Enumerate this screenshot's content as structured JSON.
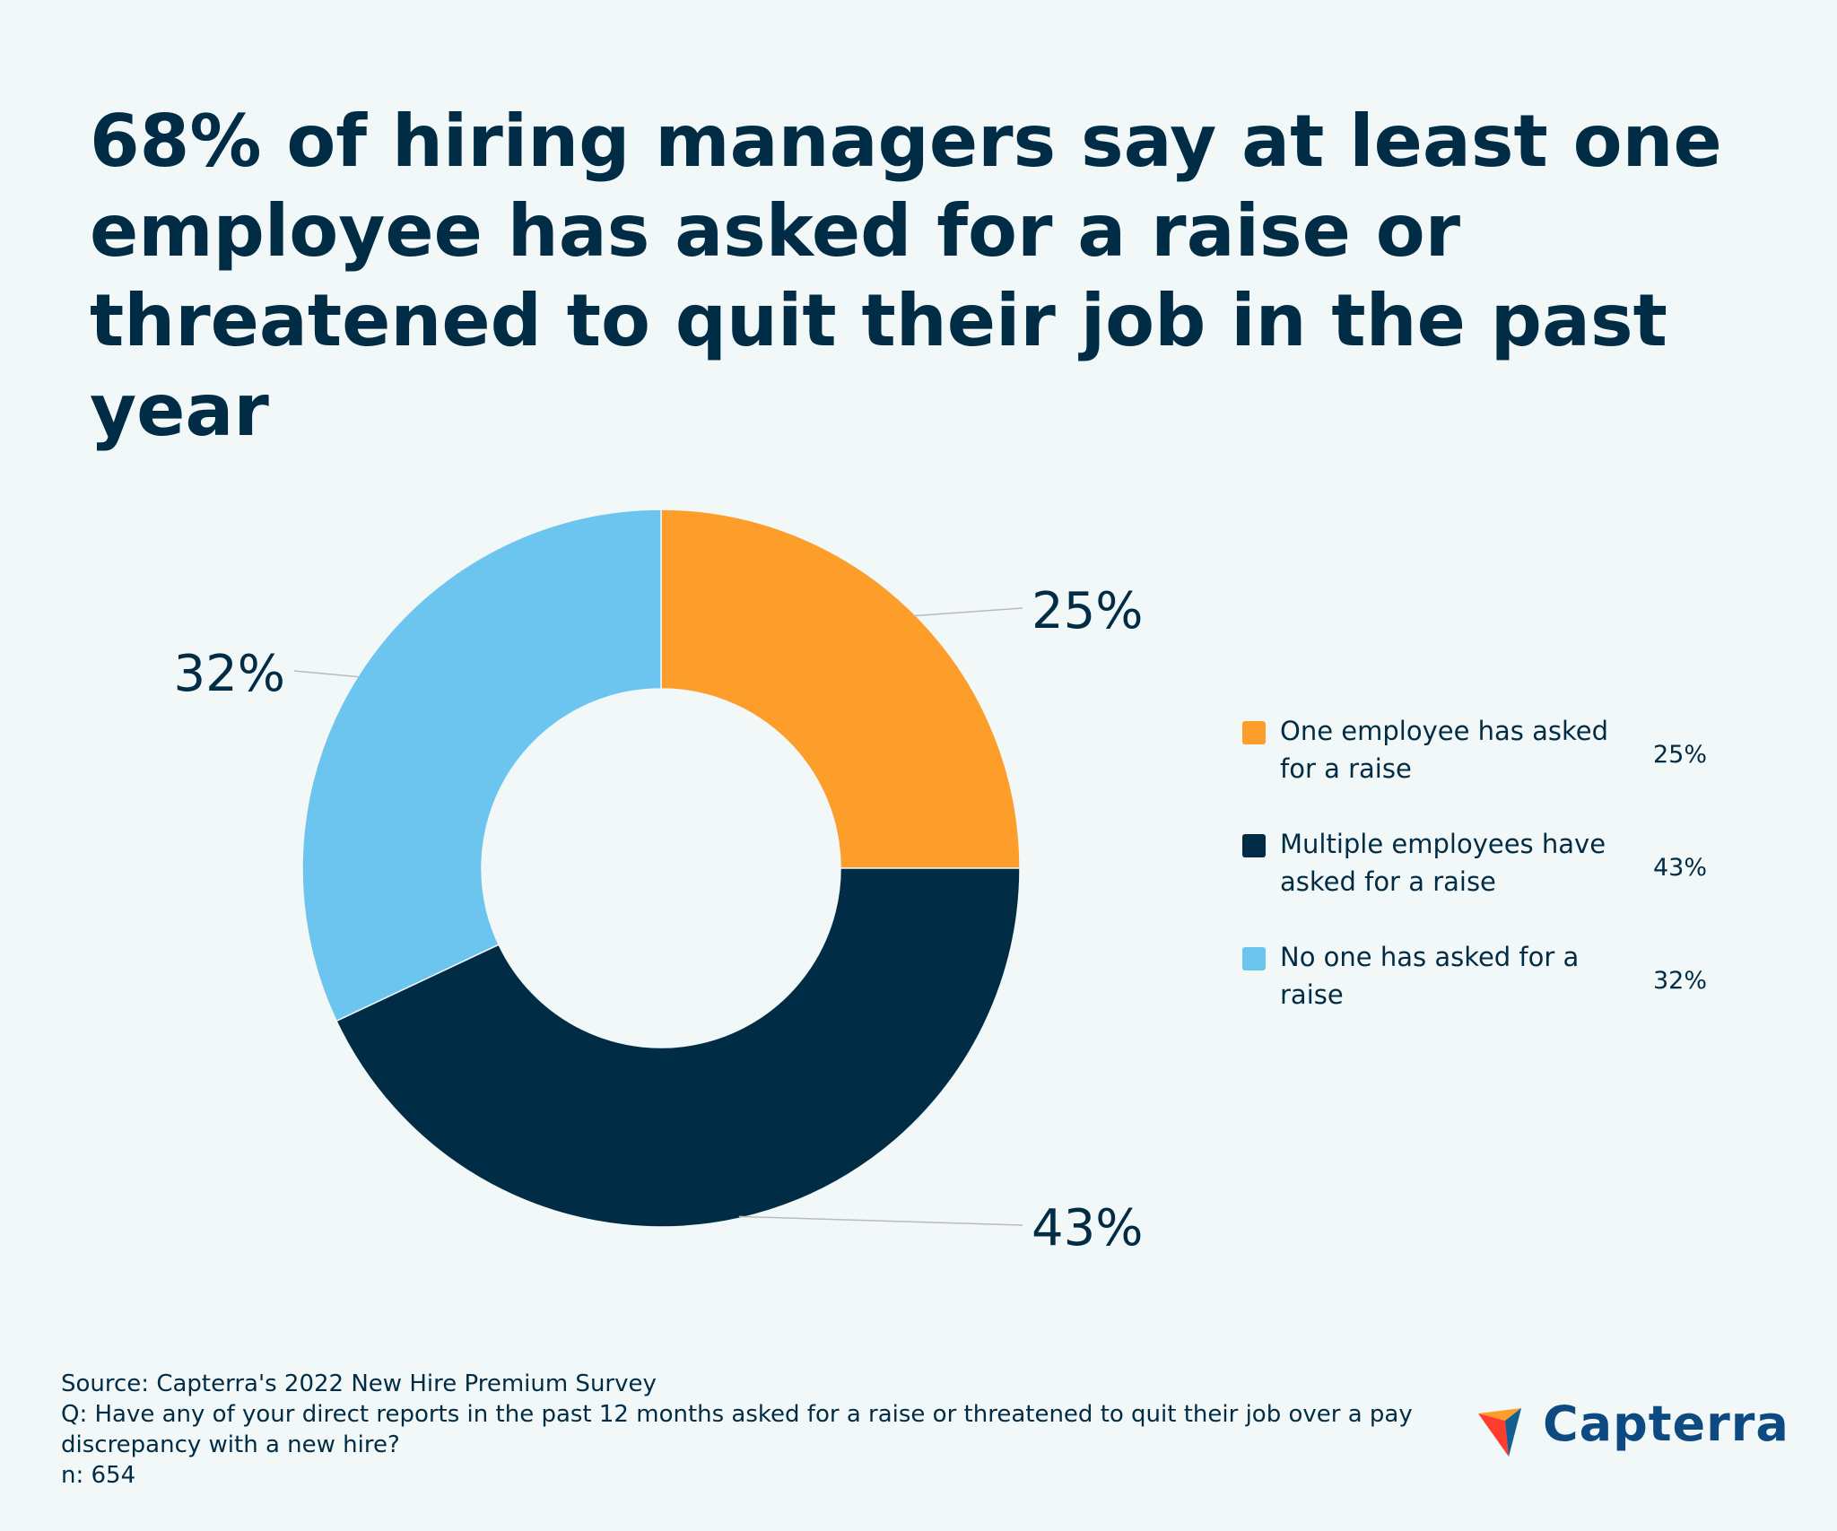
{
  "title": {
    "line1": "68% of hiring managers say at least one",
    "line2": "employee has asked for a raise or",
    "line3": "threatened to quit their job in the past year"
  },
  "chart_data": {
    "type": "pie",
    "donut": true,
    "categories": [
      "One employee has asked for a raise",
      "Multiple employees have asked for a raise",
      "No one has asked for a raise"
    ],
    "values": [
      25,
      43,
      32
    ],
    "data_labels": [
      "25%",
      "43%",
      "32%"
    ],
    "colors": [
      "#fd9d2a",
      "#012c46",
      "#6bc5ef"
    ],
    "legend_position": "right",
    "legend": [
      {
        "label": "One employee has asked for a raise",
        "value": "25%",
        "color": "#fd9d2a"
      },
      {
        "label": "Multiple employees have asked for a raise",
        "value": "43%",
        "color": "#012c46"
      },
      {
        "label": "No one has asked for a raise",
        "value": "32%",
        "color": "#6bc5ef"
      }
    ]
  },
  "footer": {
    "source": "Source: Capterra's 2022 New Hire Premium Survey",
    "question": "Q: Have any of your direct reports in the past 12 months asked for a raise or threatened to quit their job over a pay discrepancy with a new hire?",
    "n": "n: 654"
  },
  "logo": {
    "text": "Capterra",
    "text_color": "#0d4a82",
    "icon": "capterra-arrow-icon"
  }
}
